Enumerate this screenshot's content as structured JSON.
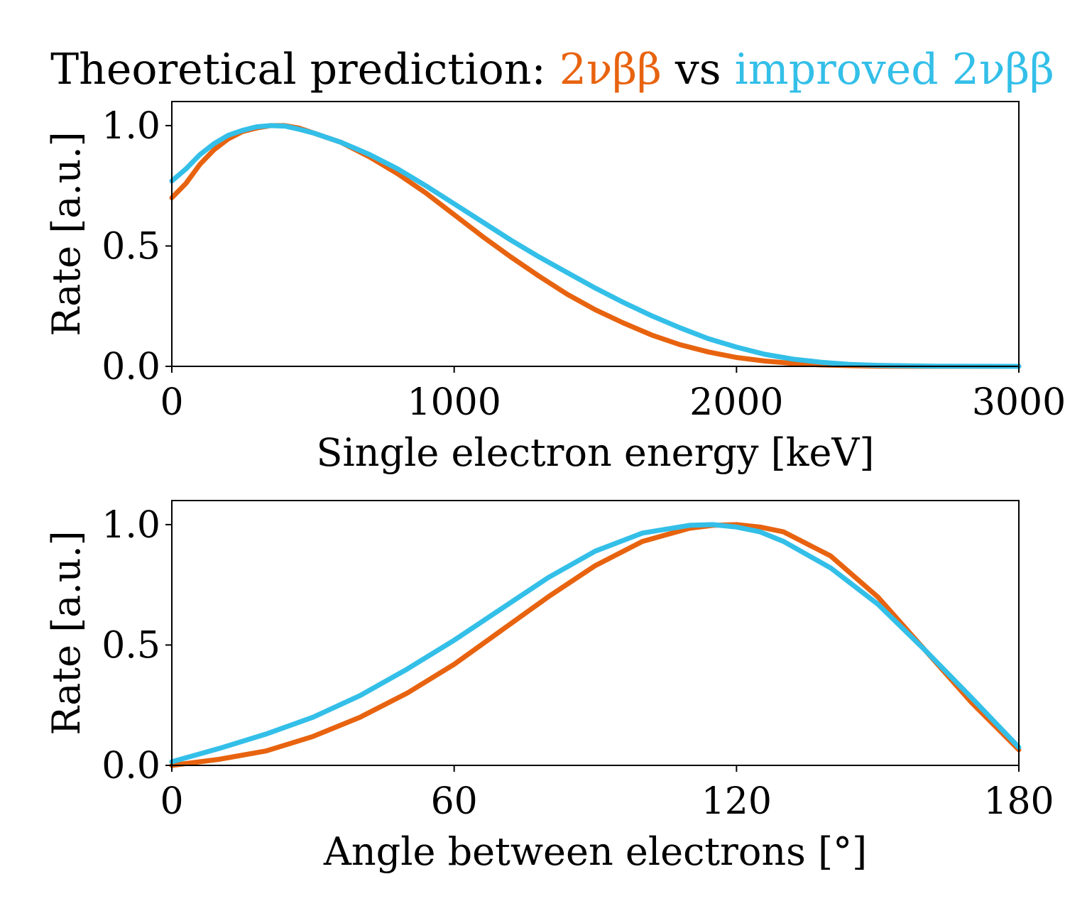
{
  "colors": {
    "standard": "#e8630f",
    "improved": "#33bfe8"
  },
  "title": {
    "prefix": "Theoretical prediction: ",
    "series1": "2νββ",
    "middle": " vs ",
    "series2": "improved 2νββ"
  },
  "chart_data": [
    {
      "type": "line",
      "title": "",
      "xlabel": "Single electron energy [keV]",
      "ylabel": "Rate [a.u.]",
      "xlim": [
        0,
        3000
      ],
      "ylim": [
        0,
        1.1
      ],
      "xticks": [
        "0",
        "1000",
        "2000",
        "3000"
      ],
      "yticks": [
        "0.0",
        "0.5",
        "1.0"
      ],
      "grid": false,
      "series": [
        {
          "name": "2νββ",
          "color_key": "standard",
          "x": [
            0,
            50,
            100,
            150,
            200,
            250,
            300,
            350,
            400,
            450,
            500,
            600,
            700,
            800,
            900,
            1000,
            1100,
            1200,
            1300,
            1400,
            1500,
            1600,
            1700,
            1800,
            1900,
            2000,
            2100,
            2200,
            2300,
            2400,
            2500,
            2700,
            3000
          ],
          "y": [
            0.7,
            0.76,
            0.84,
            0.9,
            0.945,
            0.975,
            0.99,
            1.0,
            1.0,
            0.99,
            0.97,
            0.93,
            0.87,
            0.8,
            0.72,
            0.63,
            0.54,
            0.455,
            0.375,
            0.3,
            0.235,
            0.18,
            0.13,
            0.09,
            0.06,
            0.037,
            0.022,
            0.012,
            0.006,
            0.003,
            0.001,
            0.0,
            0.0
          ]
        },
        {
          "name": "improved 2νββ",
          "color_key": "improved",
          "x": [
            0,
            50,
            100,
            150,
            200,
            250,
            300,
            350,
            400,
            450,
            500,
            600,
            700,
            800,
            900,
            1000,
            1100,
            1200,
            1300,
            1400,
            1500,
            1600,
            1700,
            1800,
            1900,
            2000,
            2100,
            2200,
            2300,
            2400,
            2500,
            2700,
            3000
          ],
          "y": [
            0.77,
            0.82,
            0.88,
            0.925,
            0.96,
            0.98,
            0.995,
            1.0,
            0.998,
            0.985,
            0.97,
            0.93,
            0.88,
            0.82,
            0.75,
            0.675,
            0.6,
            0.525,
            0.455,
            0.39,
            0.325,
            0.265,
            0.21,
            0.16,
            0.115,
            0.08,
            0.05,
            0.03,
            0.017,
            0.008,
            0.004,
            0.001,
            0.0
          ]
        }
      ]
    },
    {
      "type": "line",
      "title": "",
      "xlabel": "Angle between electrons [°]",
      "ylabel": "Rate [a.u.]",
      "xlim": [
        0,
        180
      ],
      "ylim": [
        0,
        1.1
      ],
      "xticks": [
        "0",
        "60",
        "120",
        "180"
      ],
      "yticks": [
        "0.0",
        "0.5",
        "1.0"
      ],
      "grid": false,
      "series": [
        {
          "name": "2νββ",
          "color_key": "standard",
          "x": [
            0,
            10,
            20,
            30,
            40,
            50,
            60,
            70,
            80,
            90,
            100,
            110,
            115,
            120,
            125,
            130,
            140,
            150,
            160,
            170,
            180
          ],
          "y": [
            0.0,
            0.025,
            0.06,
            0.12,
            0.2,
            0.3,
            0.42,
            0.56,
            0.7,
            0.83,
            0.93,
            0.985,
            0.997,
            1.0,
            0.99,
            0.97,
            0.87,
            0.7,
            0.48,
            0.26,
            0.065
          ]
        },
        {
          "name": "improved 2νββ",
          "color_key": "improved",
          "x": [
            0,
            10,
            20,
            30,
            40,
            50,
            60,
            70,
            80,
            90,
            100,
            110,
            115,
            120,
            125,
            130,
            140,
            150,
            160,
            170,
            180
          ],
          "y": [
            0.015,
            0.07,
            0.13,
            0.2,
            0.29,
            0.4,
            0.52,
            0.65,
            0.78,
            0.89,
            0.965,
            0.997,
            1.0,
            0.99,
            0.97,
            0.93,
            0.82,
            0.67,
            0.48,
            0.28,
            0.075
          ]
        }
      ]
    }
  ]
}
